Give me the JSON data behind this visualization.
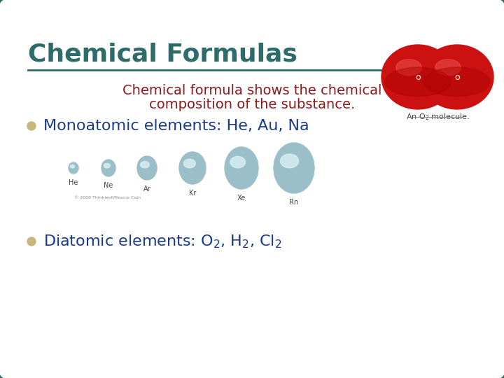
{
  "title": "Chemical Formulas",
  "title_color": "#2E6B6B",
  "subtitle_line1": "Chemical formula shows the chemical",
  "subtitle_line2": "composition of the substance.",
  "subtitle_color": "#8B1A1A",
  "bullet_color": "#1A3A8B",
  "bullet_marker_color": "#C8B878",
  "bg_color": "#FFFFFF",
  "border_color": "#2E6B6B",
  "line_color": "#2E6B6B",
  "noble_gas_labels": [
    "He",
    "Ne",
    "Ar",
    "Kr",
    "Xe",
    "Rn"
  ],
  "figsize": [
    7.2,
    5.4
  ],
  "dpi": 100
}
